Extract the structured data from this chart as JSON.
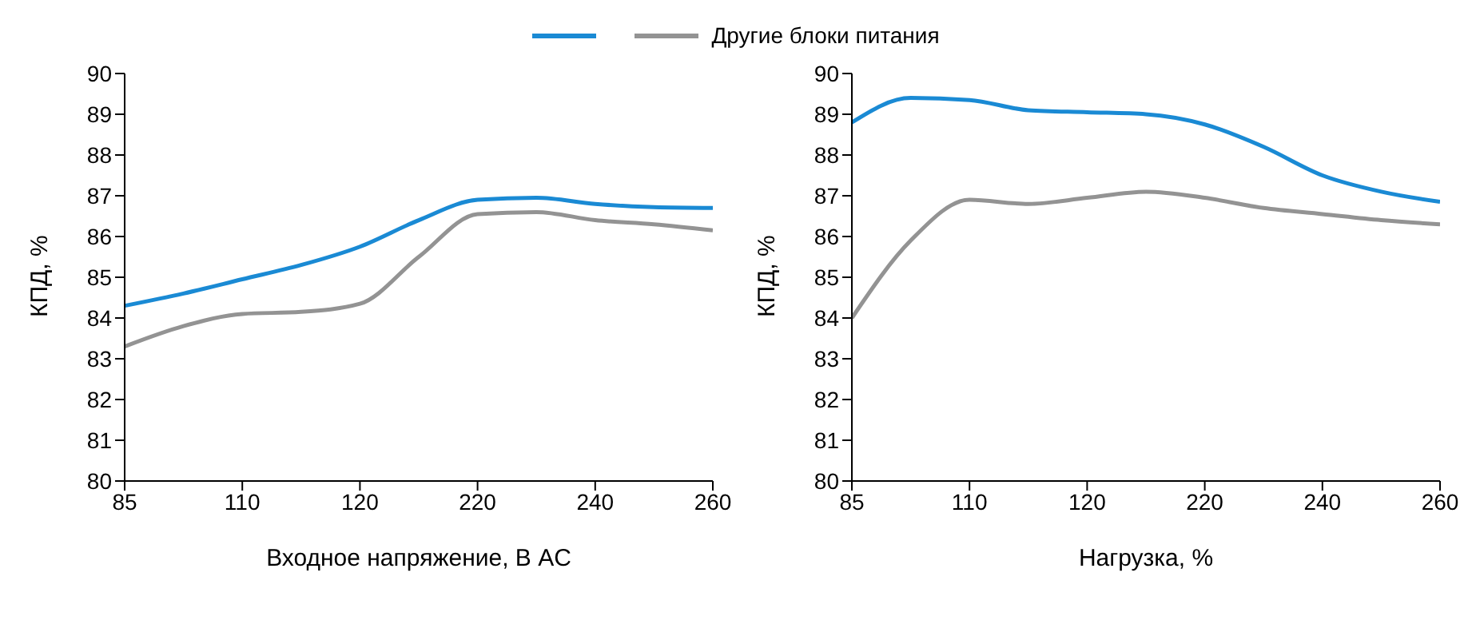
{
  "chart_data": [
    {
      "type": "line",
      "xlabel": "Входное напряжение, В AC",
      "ylabel": "КПД, %",
      "categories": [
        "85",
        null,
        "110",
        null,
        "120",
        null,
        "220",
        null,
        "240",
        null,
        "260"
      ],
      "ylim": [
        80,
        90
      ],
      "yticks": [
        80,
        81,
        82,
        83,
        84,
        85,
        86,
        87,
        88,
        89,
        90
      ],
      "grid": false,
      "legend": "top",
      "marker": "none",
      "series": [
        {
          "color": "#1a8ad4",
          "values": [
            84.3,
            84.6,
            84.95,
            85.3,
            85.75,
            86.4,
            86.9,
            86.95,
            86.8,
            86.72,
            86.7
          ]
        },
        {
          "name": "Другие блоки питания",
          "color": "#939393",
          "values": [
            83.3,
            83.8,
            84.1,
            84.15,
            84.35,
            85.5,
            86.55,
            86.6,
            86.4,
            86.3,
            86.15
          ]
        }
      ]
    },
    {
      "type": "line",
      "xlabel": "Нагрузка, %",
      "ylabel": "КПД, %",
      "categories": [
        "85",
        null,
        "110",
        null,
        "120",
        null,
        "220",
        null,
        "240",
        null,
        "260"
      ],
      "ylim": [
        80,
        90
      ],
      "yticks": [
        80,
        81,
        82,
        83,
        84,
        85,
        86,
        87,
        88,
        89,
        90
      ],
      "grid": false,
      "marker": "none",
      "series": [
        {
          "color": "#1a8ad4",
          "values": [
            88.8,
            89.4,
            89.35,
            89.1,
            89.05,
            89.0,
            88.75,
            88.2,
            87.5,
            87.1,
            86.85
          ]
        },
        {
          "color": "#939393",
          "values": [
            84.0,
            85.9,
            86.9,
            86.8,
            86.95,
            87.1,
            86.95,
            86.7,
            86.55,
            86.4,
            86.3
          ]
        }
      ]
    }
  ]
}
